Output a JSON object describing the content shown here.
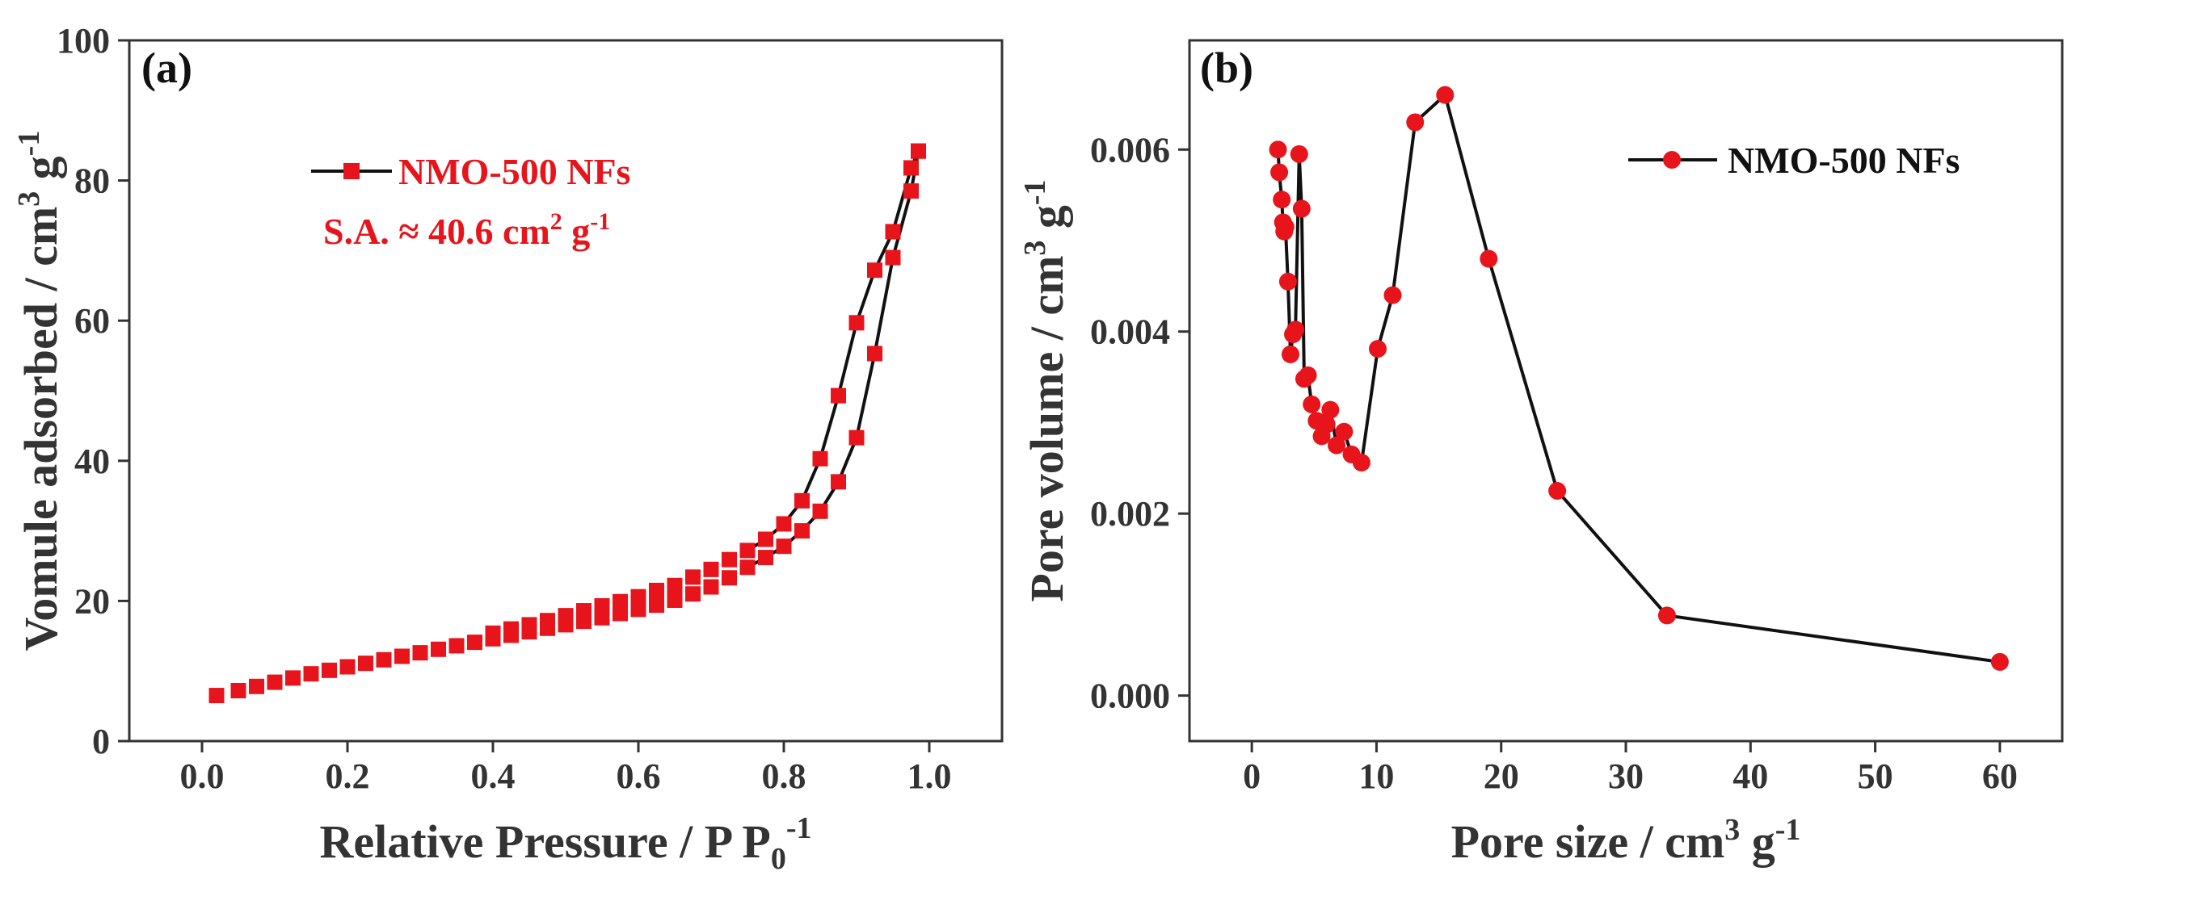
{
  "chart_data": [
    {
      "type": "scatter",
      "panel_label": "(a)",
      "xlabel": "Relative Pressure / P P",
      "xlabel_sub": "0",
      "xlabel_sup": "-1",
      "ylabel": "Vomule adsorbed / cm",
      "ylabel_sup1": "3",
      "ylabel_mid": " g",
      "ylabel_sup2": "-1",
      "xlim": [
        -0.1,
        1.1
      ],
      "ylim": [
        0,
        100
      ],
      "xticks": [
        0.0,
        0.2,
        0.4,
        0.6,
        0.8,
        1.0
      ],
      "xtick_labels": [
        "0.0",
        "0.2",
        "0.4",
        "0.6",
        "0.8",
        "1.0"
      ],
      "yticks": [
        0,
        20,
        40,
        60,
        80,
        100
      ],
      "ytick_labels": [
        "0",
        "20",
        "40",
        "60",
        "80",
        "100"
      ],
      "legend": {
        "label": "NMO-500 NFs",
        "placement": "top-left"
      },
      "annotation": {
        "text": "S.A. ≈ 40.6 cm",
        "sup1": "2",
        "mid": " g",
        "sup2": "-1"
      },
      "series": [
        {
          "name": "NMO-500 NFs",
          "marker": "square",
          "color": "#e8141b",
          "line_color": "#111111",
          "adsorption": {
            "x": [
              0.02,
              0.05,
              0.075,
              0.1,
              0.125,
              0.15,
              0.175,
              0.2,
              0.225,
              0.25,
              0.275,
              0.3,
              0.325,
              0.35,
              0.375,
              0.4,
              0.425,
              0.45,
              0.475,
              0.5,
              0.525,
              0.55,
              0.575,
              0.6,
              0.625,
              0.65,
              0.675,
              0.7,
              0.725,
              0.75,
              0.775,
              0.8,
              0.825,
              0.85,
              0.875,
              0.9,
              0.925,
              0.95,
              0.975,
              0.985
            ],
            "y": [
              6.5,
              7.2,
              7.8,
              8.4,
              9.0,
              9.6,
              10.1,
              10.6,
              11.1,
              11.6,
              12.1,
              12.6,
              13.1,
              13.6,
              14.1,
              14.6,
              15.1,
              15.6,
              16.1,
              16.6,
              17.1,
              17.6,
              18.2,
              18.8,
              19.4,
              20.1,
              21.0,
              22.0,
              23.3,
              24.8,
              26.2,
              27.8,
              30.0,
              32.8,
              37.0,
              43.3,
              55.3,
              69.0,
              78.5,
              84.2
            ]
          },
          "desorption": {
            "x": [
              0.985,
              0.975,
              0.95,
              0.925,
              0.9,
              0.875,
              0.85,
              0.825,
              0.8,
              0.775,
              0.75,
              0.725,
              0.7,
              0.675,
              0.65,
              0.625,
              0.6,
              0.575,
              0.55,
              0.525,
              0.5,
              0.475,
              0.45,
              0.425,
              0.4
            ],
            "y": [
              84.2,
              81.8,
              72.7,
              67.2,
              59.7,
              49.3,
              40.3,
              34.3,
              31.0,
              28.8,
              27.2,
              25.9,
              24.5,
              23.4,
              22.2,
              21.5,
              20.6,
              19.9,
              19.3,
              18.6,
              17.9,
              17.2,
              16.6,
              16.0,
              15.4
            ]
          }
        }
      ]
    },
    {
      "type": "line",
      "panel_label": "(b)",
      "xlabel": "Pore size / cm",
      "xlabel_sup": "3",
      "xlabel_mid": " g",
      "xlabel_sup2": "-1",
      "ylabel": "Pore volume / cm",
      "ylabel_sup1": "3",
      "ylabel_mid": " g",
      "ylabel_sup2": "-1",
      "xlim": [
        -5,
        65
      ],
      "ylim": [
        -0.0005,
        0.0072
      ],
      "xticks": [
        0,
        10,
        20,
        30,
        40,
        50,
        60
      ],
      "xtick_labels": [
        "0",
        "10",
        "20",
        "30",
        "40",
        "50",
        "60"
      ],
      "yticks": [
        0.0,
        0.002,
        0.004,
        0.006
      ],
      "ytick_labels": [
        "0.000",
        "0.002",
        "0.004",
        "0.006"
      ],
      "legend": {
        "label": "NMO-500 NFs",
        "placement": "top-right"
      },
      "series": [
        {
          "name": "NMO-500 NFs",
          "marker": "circle",
          "color": "#e8141b",
          "line_color": "#111111",
          "x": [
            2.1,
            2.2,
            2.4,
            2.5,
            2.6,
            2.7,
            2.9,
            3.1,
            3.3,
            3.5,
            3.8,
            4.0,
            4.2,
            4.5,
            4.8,
            5.2,
            5.6,
            6.0,
            6.3,
            6.8,
            7.4,
            8.0,
            8.8,
            10.1,
            11.3,
            13.1,
            15.5,
            19.0,
            24.5,
            33.3,
            60.0
          ],
          "y": [
            0.006,
            0.00575,
            0.00545,
            0.0052,
            0.0051,
            0.00515,
            0.00455,
            0.00375,
            0.00397,
            0.00402,
            0.00595,
            0.00535,
            0.00348,
            0.00352,
            0.0032,
            0.00302,
            0.00285,
            0.00298,
            0.00314,
            0.00275,
            0.0029,
            0.00265,
            0.00256,
            0.00381,
            0.0044,
            0.0063,
            0.0066,
            0.0048,
            0.00225,
            0.00088,
            0.00037
          ]
        }
      ]
    }
  ]
}
